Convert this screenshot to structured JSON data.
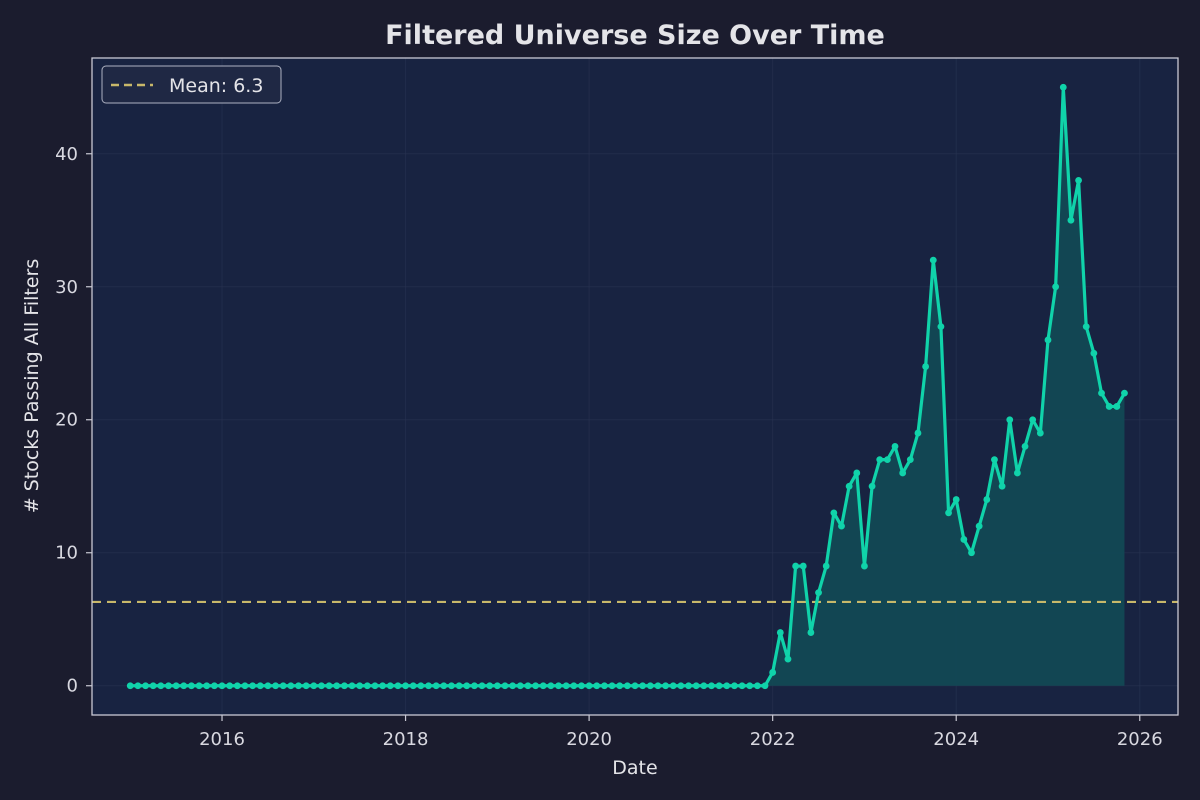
{
  "chart_data": {
    "type": "line",
    "title": "Filtered Universe Size Over Time",
    "xlabel": "Date",
    "ylabel": "# Stocks Passing All Filters",
    "xlim": [
      "2014-08-01",
      "2026-06-01"
    ],
    "ylim": [
      -2.2,
      47.2
    ],
    "x_ticks": [
      "2016",
      "2018",
      "2020",
      "2022",
      "2024",
      "2026"
    ],
    "y_ticks": [
      0,
      10,
      20,
      30,
      40
    ],
    "grid": true,
    "legend": "top-left",
    "series": [
      {
        "values": [
          {
            "x": "2015-01",
            "y": 0
          },
          {
            "x": "2015-02",
            "y": 0
          },
          {
            "x": "2015-03",
            "y": 0
          },
          {
            "x": "2015-04",
            "y": 0
          },
          {
            "x": "2015-05",
            "y": 0
          },
          {
            "x": "2015-06",
            "y": 0
          },
          {
            "x": "2015-07",
            "y": 0
          },
          {
            "x": "2015-08",
            "y": 0
          },
          {
            "x": "2015-09",
            "y": 0
          },
          {
            "x": "2015-10",
            "y": 0
          },
          {
            "x": "2015-11",
            "y": 0
          },
          {
            "x": "2015-12",
            "y": 0
          },
          {
            "x": "2016-01",
            "y": 0
          },
          {
            "x": "2016-02",
            "y": 0
          },
          {
            "x": "2016-03",
            "y": 0
          },
          {
            "x": "2016-04",
            "y": 0
          },
          {
            "x": "2016-05",
            "y": 0
          },
          {
            "x": "2016-06",
            "y": 0
          },
          {
            "x": "2016-07",
            "y": 0
          },
          {
            "x": "2016-08",
            "y": 0
          },
          {
            "x": "2016-09",
            "y": 0
          },
          {
            "x": "2016-10",
            "y": 0
          },
          {
            "x": "2016-11",
            "y": 0
          },
          {
            "x": "2016-12",
            "y": 0
          },
          {
            "x": "2017-01",
            "y": 0
          },
          {
            "x": "2017-02",
            "y": 0
          },
          {
            "x": "2017-03",
            "y": 0
          },
          {
            "x": "2017-04",
            "y": 0
          },
          {
            "x": "2017-05",
            "y": 0
          },
          {
            "x": "2017-06",
            "y": 0
          },
          {
            "x": "2017-07",
            "y": 0
          },
          {
            "x": "2017-08",
            "y": 0
          },
          {
            "x": "2017-09",
            "y": 0
          },
          {
            "x": "2017-10",
            "y": 0
          },
          {
            "x": "2017-11",
            "y": 0
          },
          {
            "x": "2017-12",
            "y": 0
          },
          {
            "x": "2018-01",
            "y": 0
          },
          {
            "x": "2018-02",
            "y": 0
          },
          {
            "x": "2018-03",
            "y": 0
          },
          {
            "x": "2018-04",
            "y": 0
          },
          {
            "x": "2018-05",
            "y": 0
          },
          {
            "x": "2018-06",
            "y": 0
          },
          {
            "x": "2018-07",
            "y": 0
          },
          {
            "x": "2018-08",
            "y": 0
          },
          {
            "x": "2018-09",
            "y": 0
          },
          {
            "x": "2018-10",
            "y": 0
          },
          {
            "x": "2018-11",
            "y": 0
          },
          {
            "x": "2018-12",
            "y": 0
          },
          {
            "x": "2019-01",
            "y": 0
          },
          {
            "x": "2019-02",
            "y": 0
          },
          {
            "x": "2019-03",
            "y": 0
          },
          {
            "x": "2019-04",
            "y": 0
          },
          {
            "x": "2019-05",
            "y": 0
          },
          {
            "x": "2019-06",
            "y": 0
          },
          {
            "x": "2019-07",
            "y": 0
          },
          {
            "x": "2019-08",
            "y": 0
          },
          {
            "x": "2019-09",
            "y": 0
          },
          {
            "x": "2019-10",
            "y": 0
          },
          {
            "x": "2019-11",
            "y": 0
          },
          {
            "x": "2019-12",
            "y": 0
          },
          {
            "x": "2020-01",
            "y": 0
          },
          {
            "x": "2020-02",
            "y": 0
          },
          {
            "x": "2020-03",
            "y": 0
          },
          {
            "x": "2020-04",
            "y": 0
          },
          {
            "x": "2020-05",
            "y": 0
          },
          {
            "x": "2020-06",
            "y": 0
          },
          {
            "x": "2020-07",
            "y": 0
          },
          {
            "x": "2020-08",
            "y": 0
          },
          {
            "x": "2020-09",
            "y": 0
          },
          {
            "x": "2020-10",
            "y": 0
          },
          {
            "x": "2020-11",
            "y": 0
          },
          {
            "x": "2020-12",
            "y": 0
          },
          {
            "x": "2021-01",
            "y": 0
          },
          {
            "x": "2021-02",
            "y": 0
          },
          {
            "x": "2021-03",
            "y": 0
          },
          {
            "x": "2021-04",
            "y": 0
          },
          {
            "x": "2021-05",
            "y": 0
          },
          {
            "x": "2021-06",
            "y": 0
          },
          {
            "x": "2021-07",
            "y": 0
          },
          {
            "x": "2021-08",
            "y": 0
          },
          {
            "x": "2021-09",
            "y": 0
          },
          {
            "x": "2021-10",
            "y": 0
          },
          {
            "x": "2021-11",
            "y": 0
          },
          {
            "x": "2021-12",
            "y": 0
          },
          {
            "x": "2022-01",
            "y": 1
          },
          {
            "x": "2022-02",
            "y": 4
          },
          {
            "x": "2022-03",
            "y": 2
          },
          {
            "x": "2022-04",
            "y": 9
          },
          {
            "x": "2022-05",
            "y": 9
          },
          {
            "x": "2022-06",
            "y": 4
          },
          {
            "x": "2022-07",
            "y": 7
          },
          {
            "x": "2022-08",
            "y": 9
          },
          {
            "x": "2022-09",
            "y": 13
          },
          {
            "x": "2022-10",
            "y": 12
          },
          {
            "x": "2022-11",
            "y": 15
          },
          {
            "x": "2022-12",
            "y": 16
          },
          {
            "x": "2023-01",
            "y": 9
          },
          {
            "x": "2023-02",
            "y": 15
          },
          {
            "x": "2023-03",
            "y": 17
          },
          {
            "x": "2023-04",
            "y": 17
          },
          {
            "x": "2023-05",
            "y": 18
          },
          {
            "x": "2023-06",
            "y": 16
          },
          {
            "x": "2023-07",
            "y": 17
          },
          {
            "x": "2023-08",
            "y": 19
          },
          {
            "x": "2023-09",
            "y": 24
          },
          {
            "x": "2023-10",
            "y": 32
          },
          {
            "x": "2023-11",
            "y": 27
          },
          {
            "x": "2023-12",
            "y": 13
          },
          {
            "x": "2024-01",
            "y": 14
          },
          {
            "x": "2024-02",
            "y": 11
          },
          {
            "x": "2024-03",
            "y": 10
          },
          {
            "x": "2024-04",
            "y": 12
          },
          {
            "x": "2024-05",
            "y": 14
          },
          {
            "x": "2024-06",
            "y": 17
          },
          {
            "x": "2024-07",
            "y": 15
          },
          {
            "x": "2024-08",
            "y": 20
          },
          {
            "x": "2024-09",
            "y": 16
          },
          {
            "x": "2024-10",
            "y": 18
          },
          {
            "x": "2024-11",
            "y": 20
          },
          {
            "x": "2024-12",
            "y": 19
          },
          {
            "x": "2025-01",
            "y": 26
          },
          {
            "x": "2025-02",
            "y": 30
          },
          {
            "x": "2025-03",
            "y": 45
          },
          {
            "x": "2025-04",
            "y": 35
          },
          {
            "x": "2025-05",
            "y": 38
          },
          {
            "x": "2025-06",
            "y": 27
          },
          {
            "x": "2025-07",
            "y": 25
          },
          {
            "x": "2025-08",
            "y": 22
          },
          {
            "x": "2025-09",
            "y": 21
          },
          {
            "x": "2025-10",
            "y": 21
          },
          {
            "x": "2025-11",
            "y": 22
          }
        ]
      }
    ],
    "mean_line": {
      "label": "Mean: 6.3",
      "value": 6.3
    },
    "colors": {
      "background": "#1b1c2e",
      "plot_background": "#182341",
      "line": "#10d3aa",
      "fill": "#124a55",
      "mean_line": "#c8b86a",
      "spine": "#c9c9d4",
      "text": "#e4e4e8"
    }
  }
}
